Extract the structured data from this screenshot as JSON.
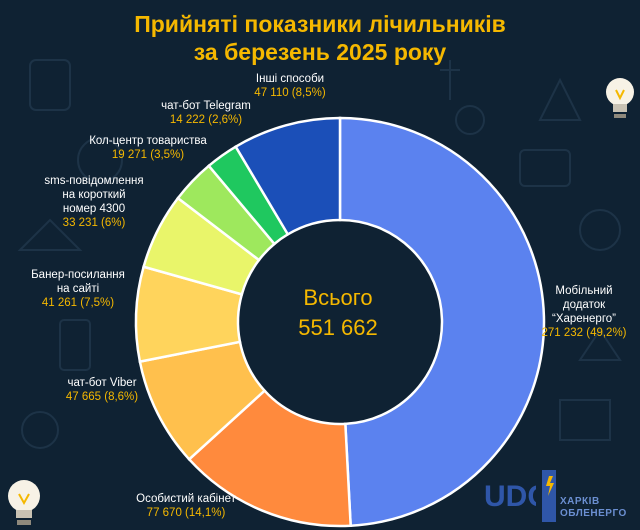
{
  "title_line1": "Прийняті показники лічильників",
  "title_line2": "за березень 2025 року",
  "center": {
    "label": "Всього",
    "value": "551 662"
  },
  "company": {
    "line1": "ХАРКІВ",
    "line2": "ОБЛЕНЕРГО",
    "logo_text": "UDG"
  },
  "colors": {
    "background": "#0f2233",
    "accent": "#f5b800",
    "segments": [
      "#5b82ef",
      "#ff8a3d",
      "#ffc04d",
      "#ffd45c",
      "#e9f56a",
      "#9ee85d",
      "#1fc85f",
      "#1b4fb8"
    ]
  },
  "chart_data": {
    "type": "pie",
    "style": "donut",
    "total": 551662,
    "slices": [
      {
        "label": "Мобільний додаток “Харенерго”",
        "lines": [
          "Мобільний",
          "додаток",
          "“Харенерго”"
        ],
        "value": 271232,
        "value_text": "271 232 (49,2%)",
        "percent": 49.2
      },
      {
        "label": "Особистий кабінет",
        "lines": [
          "Особистий кабінет"
        ],
        "value": 77670,
        "value_text": "77 670 (14,1%)",
        "percent": 14.1
      },
      {
        "label": "чат-бот Viber",
        "lines": [
          "чат-бот Viber"
        ],
        "value": 47665,
        "value_text": "47 665 (8,6%)",
        "percent": 8.6
      },
      {
        "label": "Банер-посилання на сайті",
        "lines": [
          "Банер-посилання",
          "на сайті"
        ],
        "value": 41261,
        "value_text": "41 261 (7,5%)",
        "percent": 7.5
      },
      {
        "label": "sms-повідомлення на короткий номер 4300",
        "lines": [
          "sms-повідомлення",
          "на короткий",
          "номер 4300"
        ],
        "value": 33231,
        "value_text": "33 231 (6%)",
        "percent": 6.0
      },
      {
        "label": "Кол-центр товариства",
        "lines": [
          "Кол-центр товариства"
        ],
        "value": 19271,
        "value_text": "19 271 (3,5%)",
        "percent": 3.5
      },
      {
        "label": "чат-бот Telegram",
        "lines": [
          "чат-бот Telegram"
        ],
        "value": 14222,
        "value_text": "14 222 (2,6%)",
        "percent": 2.6
      },
      {
        "label": "Інші способи",
        "lines": [
          "Інші способи"
        ],
        "value": 47110,
        "value_text": "47 110 (8,5%)",
        "percent": 8.5
      }
    ]
  }
}
